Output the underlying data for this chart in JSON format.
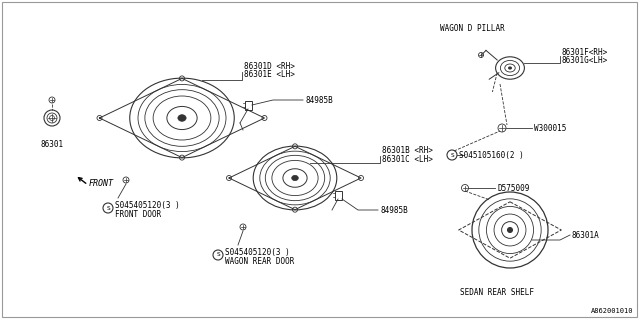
{
  "bg_color": "#ffffff",
  "line_color": "#333333",
  "text_color": "#000000",
  "part_number_bottom_right": "A862001010",
  "labels": {
    "86301D_RH": "86301D <RH>",
    "86301E_LH": "86301E <LH>",
    "86301B_RH": "86301B <RH>",
    "86301C_LH": "86301C <LH>",
    "86301F_RH": "86301F<RH>",
    "86301G_LH": "86301G<LH>",
    "86301A": "86301A",
    "86301": "86301",
    "84985B_1": "84985B",
    "84985B_2": "84985B",
    "W300015": "W300015",
    "D575009": "D575009",
    "S045405120_fd_1": "S045405120(3 )",
    "S045405120_fd_2": "FRONT DOOR",
    "S045405120_wr_1": "S045405120(3 )",
    "S045405120_wr_2": "WAGON REAR DOOR",
    "S045105160": "S045105160(2 )",
    "WAGON_D_PILLAR": "WAGON D PILLAR",
    "SEDAN_REAR_SHELF": "SEDAN REAR SHELF",
    "FRONT": "FRONT"
  }
}
